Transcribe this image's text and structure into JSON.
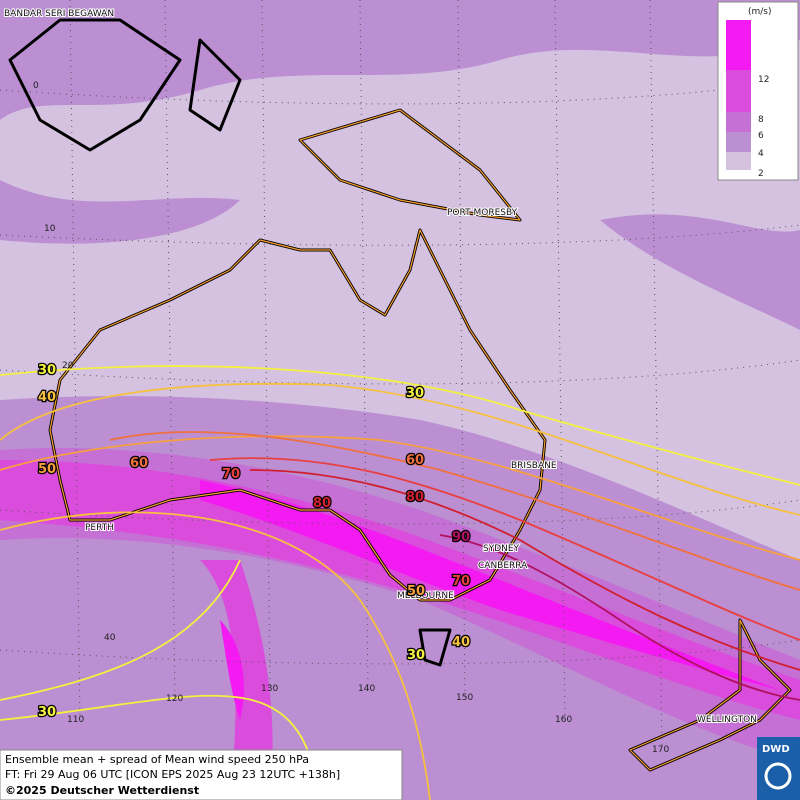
{
  "cities": [
    "BANDAR SERI BEGAWAN",
    "PORT MORESBY",
    "BRISBANE",
    "PERTH",
    "SYDNEY",
    "CANBERRA",
    "MELBOURNE",
    "WELLINGTON"
  ],
  "latitude_labels": [
    "0",
    "10",
    "20",
    "40"
  ],
  "longitude_labels": [
    "110",
    "120",
    "130",
    "140",
    "150",
    "160",
    "170"
  ],
  "contour_labels": [
    "30",
    "40",
    "50",
    "60",
    "70",
    "80",
    "30",
    "60",
    "80",
    "90",
    "70",
    "50",
    "40",
    "30",
    "30"
  ],
  "legend": {
    "unit": "(m/s)",
    "ticks": [
      "12",
      "8",
      "6",
      "4",
      "2"
    ]
  },
  "footer": {
    "line1": "Ensemble mean + spread of Mean wind speed 250 hPa",
    "line2": "FT: Fri 29 Aug 06 UTC [ICON EPS 2025 Aug 23 12UTC +138h]",
    "line3": "©2025 Deutscher Wetterdienst"
  },
  "logo": "DWD"
}
